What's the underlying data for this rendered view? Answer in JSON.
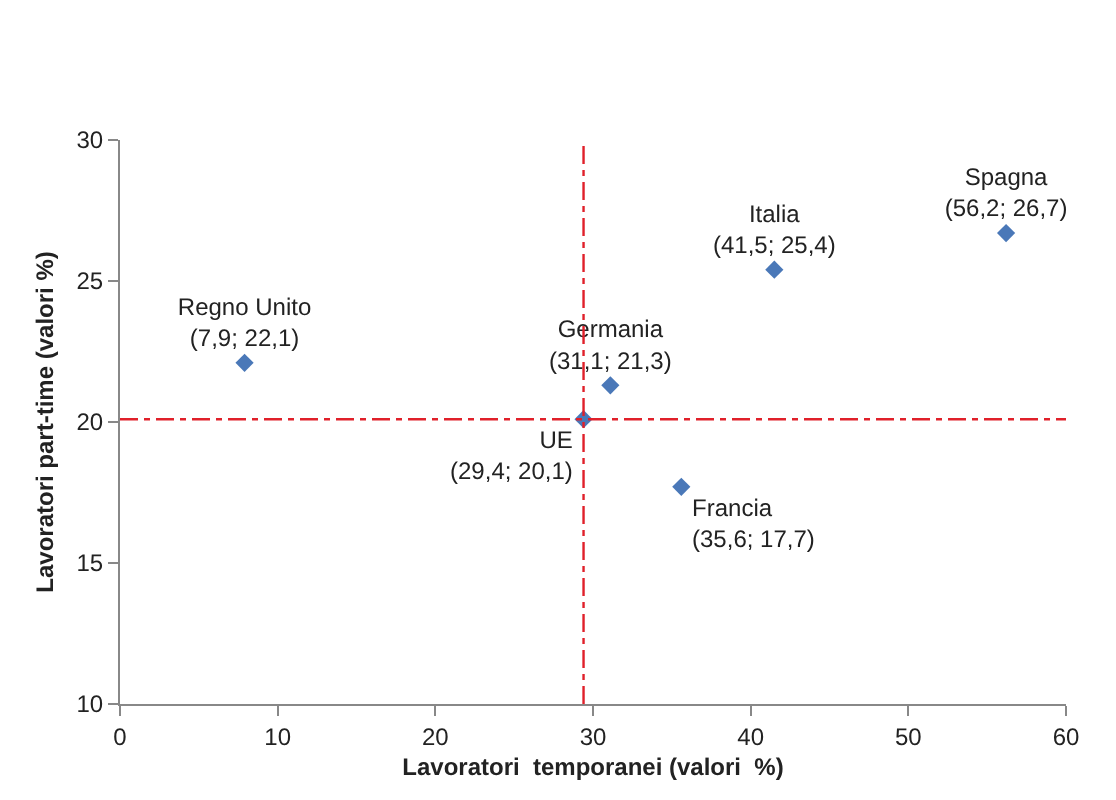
{
  "chart_data": {
    "type": "scatter",
    "xlabel": "Lavoratori  temporanei (valori  %)",
    "ylabel": "Lavoratori part-time (valori %)",
    "x": [
      7.9,
      31.1,
      41.5,
      56.2,
      29.4,
      35.6
    ],
    "values": [
      22.1,
      21.3,
      25.4,
      26.7,
      20.1,
      17.7
    ],
    "value_labels": [
      "Regno Unito\n(7,9; 22,1)",
      "Germania\n(31,1; 21,3)",
      "Italia\n(41,5; 25,4)",
      "Spagna\n(56,2; 26,7)",
      "UE\n(29,4; 20,1)",
      "Francia\n(35,6; 17,7)"
    ],
    "color": "#4a78b8",
    "marker": "diamond",
    "xlim": [
      0,
      60
    ],
    "xticks": [
      0,
      10,
      20,
      30,
      40,
      50,
      60
    ],
    "ylim": [
      10,
      30
    ],
    "yticks": [
      10,
      15,
      20,
      25,
      30
    ],
    "ref_lines": [
      {
        "axis": "x",
        "value": 29.4,
        "color": "#e0202a",
        "line_style": "dashdot"
      },
      {
        "axis": "y",
        "value": 20.1,
        "color": "#e0202a",
        "line_style": "dashdot"
      }
    ],
    "legend": false
  }
}
